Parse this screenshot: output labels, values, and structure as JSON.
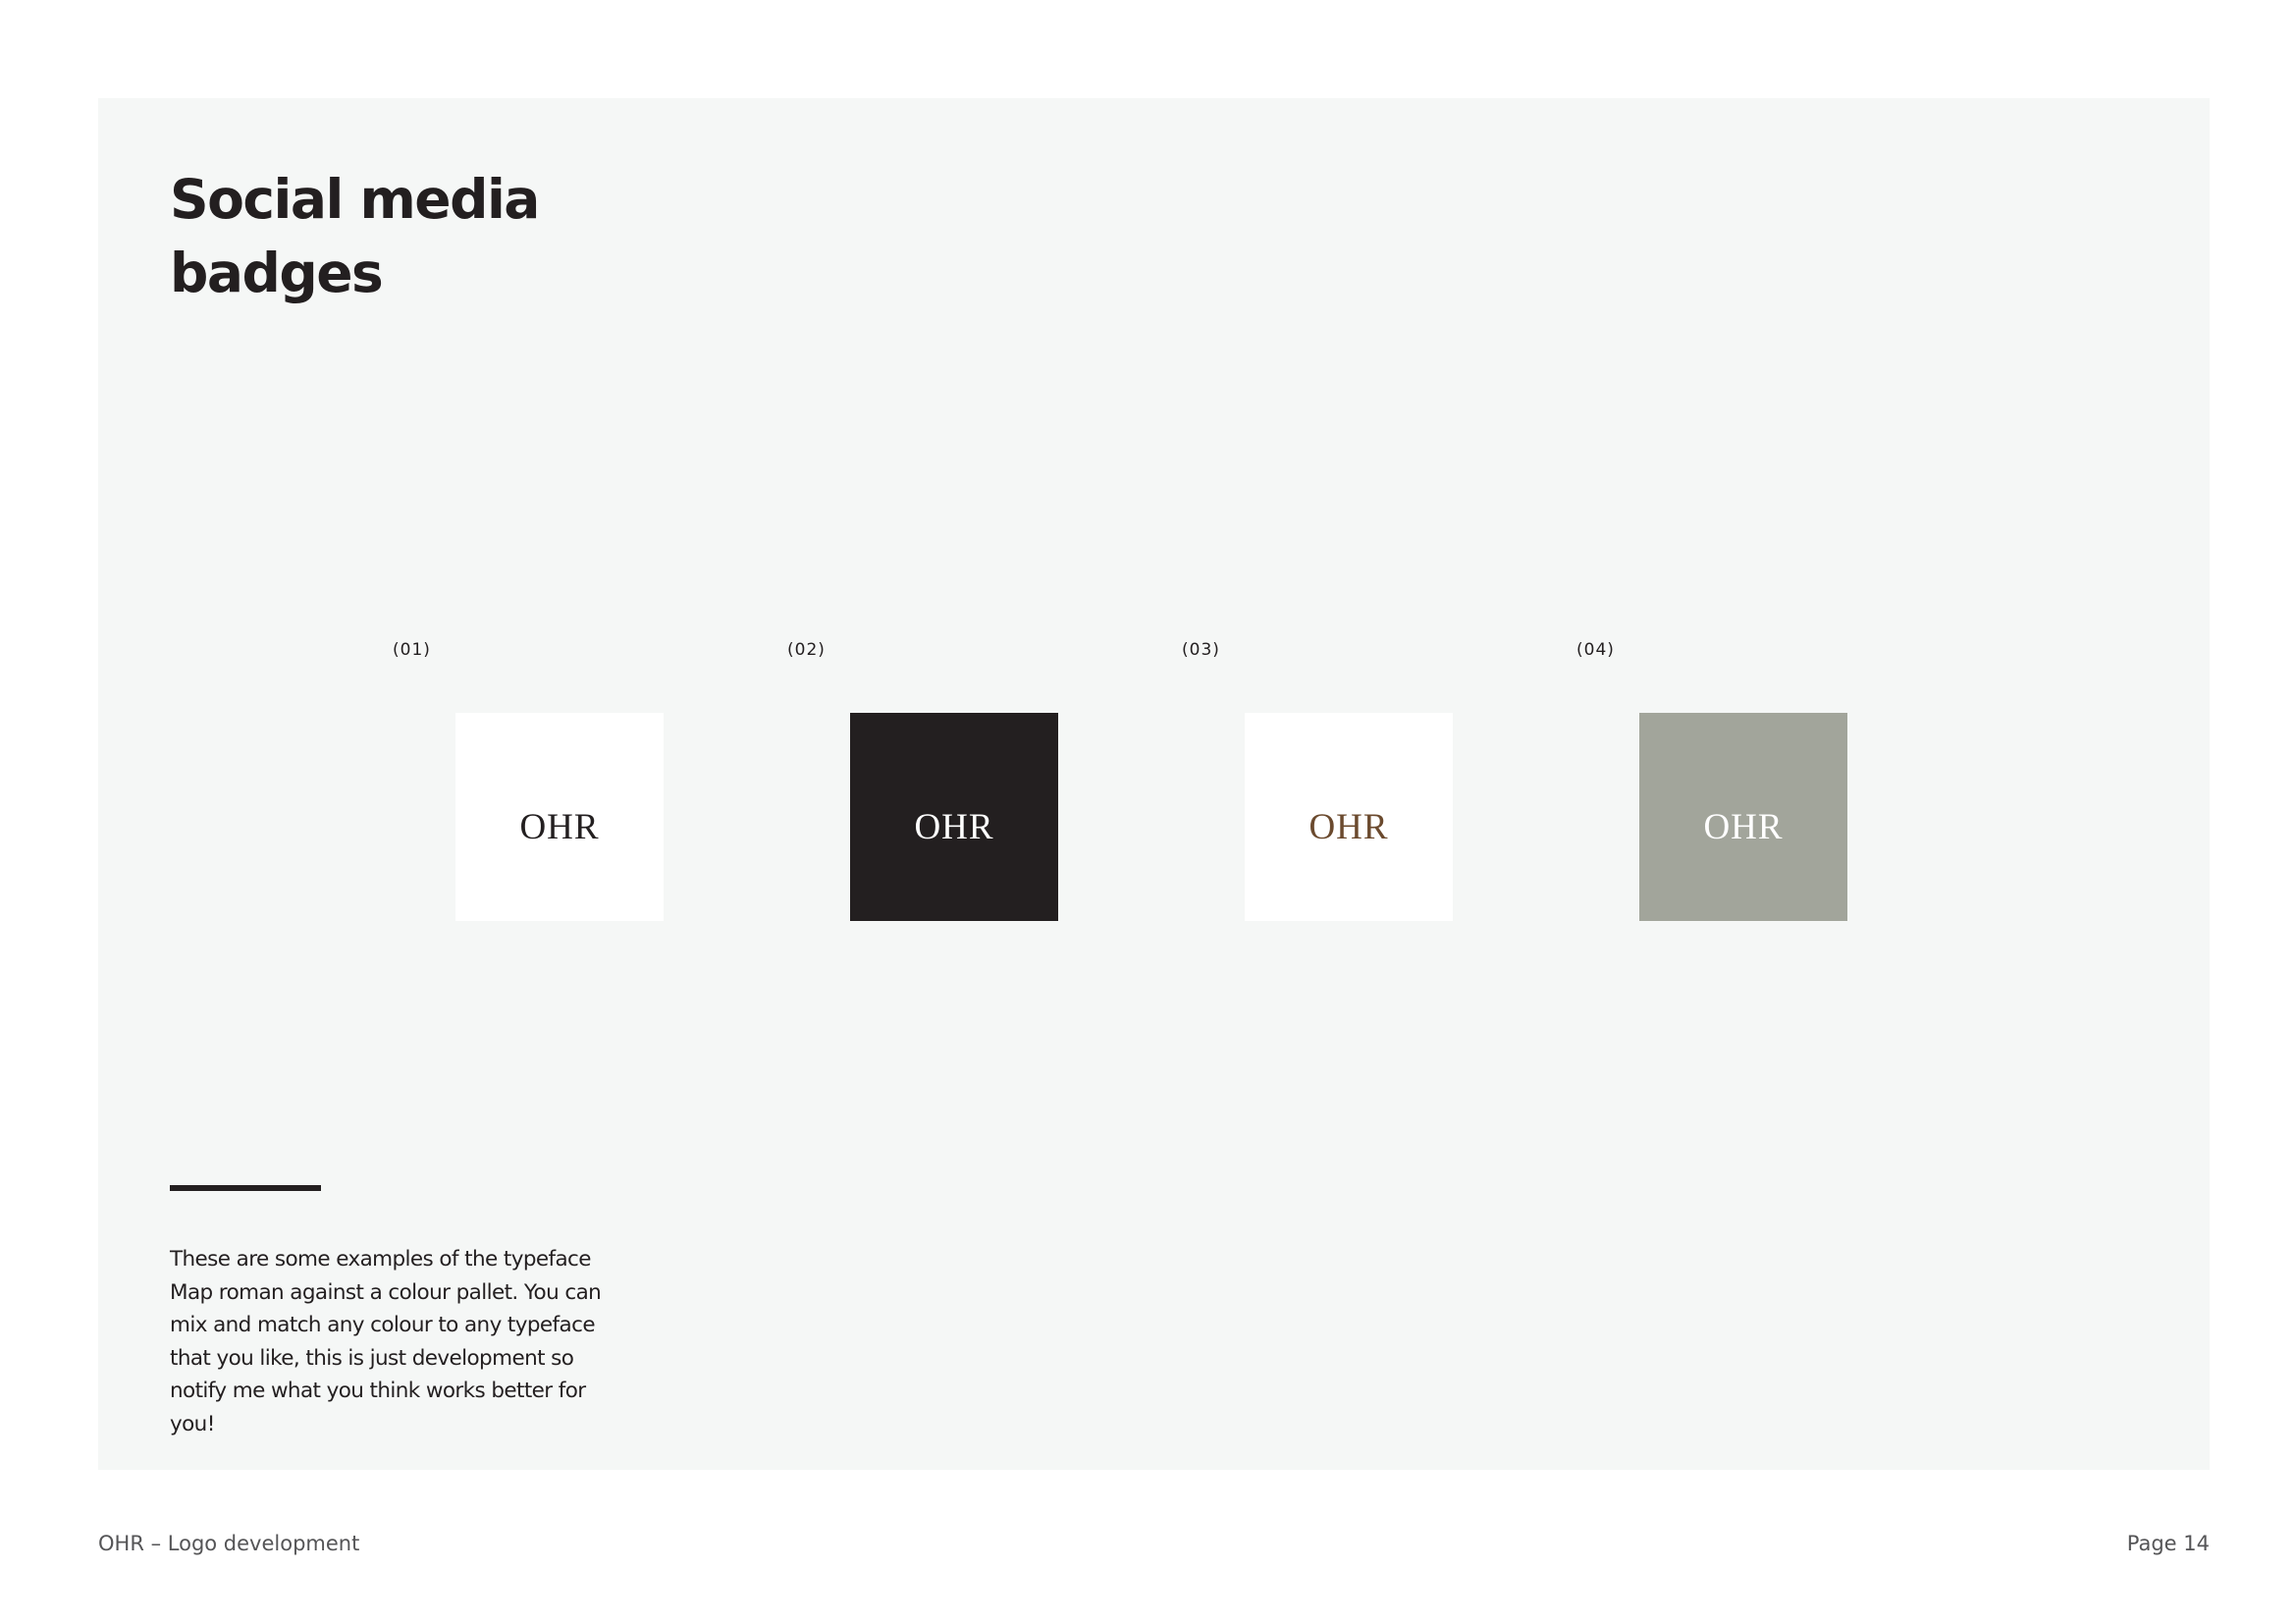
{
  "page": {
    "title": "Social media badges",
    "description": "These are some examples of the typeface Map roman against a colour pallet. You can mix and match any colour to any typeface that you like, this is just development so notify me what you think works better for you!"
  },
  "badges": [
    {
      "label": "(01)",
      "text": "OHR",
      "background": "#ffffff",
      "text_color": "#231f20"
    },
    {
      "label": "(02)",
      "text": "OHR",
      "background": "#231f20",
      "text_color": "#ffffff"
    },
    {
      "label": "(03)",
      "text": "OHR",
      "background": "#ffffff",
      "text_color": "#6b4a2e"
    },
    {
      "label": "(04)",
      "text": "OHR",
      "background": "#a2a59b",
      "text_color": "#ffffff"
    }
  ],
  "colors": {
    "panel_background": "#f5f7f6",
    "text_dark": "#231f20"
  },
  "footer": {
    "left": "OHR – Logo development",
    "right": "Page 14"
  }
}
